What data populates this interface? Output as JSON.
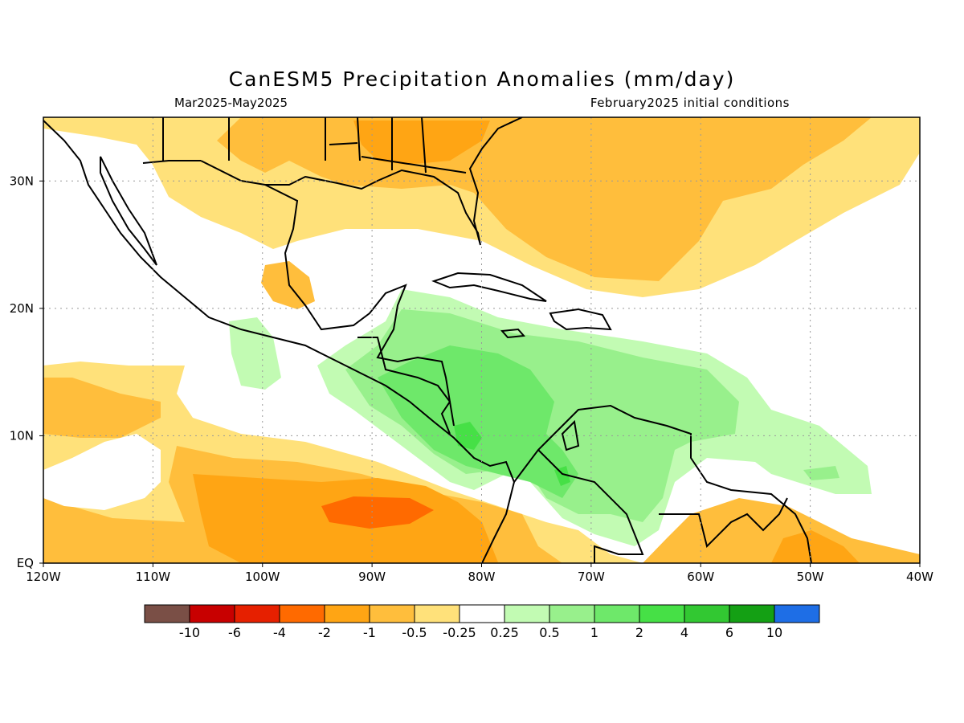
{
  "title": "CanESM5 Precipitation Anomalies (mm/day)",
  "subtitle_left": "Mar2025-May2025",
  "subtitle_right": "February2025 initial conditions",
  "map": {
    "lon_range": [
      -120,
      -40
    ],
    "lat_range": [
      0,
      35
    ],
    "x_ticks": [
      {
        "lon": -120,
        "label": "120W"
      },
      {
        "lon": -110,
        "label": "110W"
      },
      {
        "lon": -100,
        "label": "100W"
      },
      {
        "lon": -90,
        "label": "90W"
      },
      {
        "lon": -80,
        "label": "80W"
      },
      {
        "lon": -70,
        "label": "70W"
      },
      {
        "lon": -60,
        "label": "60W"
      },
      {
        "lon": -50,
        "label": "50W"
      },
      {
        "lon": -40,
        "label": "40W"
      }
    ],
    "y_ticks": [
      {
        "lat": 30,
        "label": "30N"
      },
      {
        "lat": 20,
        "label": "20N"
      },
      {
        "lat": 10,
        "label": "10N"
      },
      {
        "lat": 0,
        "label": "EQ"
      }
    ],
    "gridlines": true
  },
  "colorbar": {
    "colors": [
      "#7a4f46",
      "#c80000",
      "#e62000",
      "#ff6a00",
      "#ffa514",
      "#ffbe3c",
      "#ffe17a",
      "#ffffff",
      "#c2fbb3",
      "#98f08c",
      "#6ee86a",
      "#46e046",
      "#32c832",
      "#14a014",
      "#1e6ee6"
    ],
    "labels": [
      "-10",
      "-6",
      "-4",
      "-2",
      "-1",
      "-0.5",
      "-0.25",
      "0.25",
      "0.5",
      "1",
      "2",
      "4",
      "6",
      "10"
    ]
  }
}
